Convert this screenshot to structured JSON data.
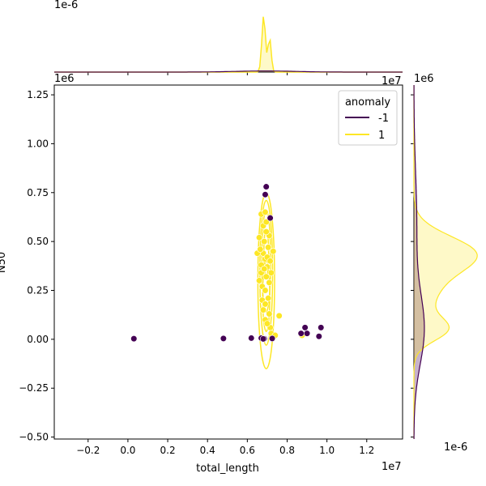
{
  "chart_data": {
    "type": "scatter",
    "kind": "jointplot (scatter + kde contours with marginal kde)",
    "xlabel": "total_length",
    "ylabel": "N50",
    "x_multiplier_label": "1e7",
    "y_multiplier_label": "1e6",
    "top_marginal_multiplier_label": "1e-6",
    "right_marginal_top_label": "1e6",
    "right_marginal_multiplier_label": "1e-6",
    "x_top_marginal_label": "1e7",
    "xlim": [
      -3700000.0,
      13800000.0
    ],
    "ylim": [
      -510000.0,
      1300000.0
    ],
    "x_ticks": [
      -2000000.0,
      0,
      2000000.0,
      4000000.0,
      6000000.0,
      8000000.0,
      10000000.0,
      12000000.0
    ],
    "x_tick_labels": [
      "−0.2",
      "0.0",
      "0.2",
      "0.4",
      "0.6",
      "0.8",
      "1.0",
      "1.2"
    ],
    "y_ticks": [
      -500000.0,
      -250000.0,
      0,
      250000.0,
      500000.0,
      750000.0,
      1000000.0,
      1250000.0
    ],
    "y_tick_labels": [
      "−0.50",
      "−0.25",
      "0.00",
      "0.25",
      "0.50",
      "0.75",
      "1.00",
      "1.25"
    ],
    "grid": false,
    "legend": {
      "title": "anomaly",
      "placement": "top-right",
      "entries": [
        {
          "label": "-1",
          "color": "#440154"
        },
        {
          "label": "1",
          "color": "#fde725"
        }
      ]
    },
    "series": [
      {
        "name": "1",
        "color": "#fde725",
        "points": [
          [
            6600000.0,
            300000.0
          ],
          [
            6700000.0,
            340000.0
          ],
          [
            6800000.0,
            440000.0
          ],
          [
            6900000.0,
            410000.0
          ],
          [
            7000000.0,
            370000.0
          ],
          [
            6800000.0,
            580000.0
          ],
          [
            6950000.0,
            600000.0
          ],
          [
            6700000.0,
            640000.0
          ],
          [
            6900000.0,
            650000.0
          ],
          [
            7100000.0,
            530000.0
          ],
          [
            6500000.0,
            440000.0
          ],
          [
            6850000.0,
            500000.0
          ],
          [
            7050000.0,
            470000.0
          ],
          [
            7300000.0,
            450000.0
          ],
          [
            6750000.0,
            270000.0
          ],
          [
            6900000.0,
            250000.0
          ],
          [
            7050000.0,
            210000.0
          ],
          [
            6800000.0,
            150000.0
          ],
          [
            6900000.0,
            100000.0
          ],
          [
            7150000.0,
            60000.0
          ],
          [
            7200000.0,
            30000.0
          ],
          [
            7400000.0,
            20000.0
          ],
          [
            7600000.0,
            120000.0
          ],
          [
            6950000.0,
            320000.0
          ],
          [
            7100000.0,
            290000.0
          ],
          [
            6700000.0,
            380000.0
          ],
          [
            6850000.0,
            360000.0
          ],
          [
            7000000.0,
            420000.0
          ],
          [
            6600000.0,
            520000.0
          ],
          [
            6950000.0,
            550000.0
          ],
          [
            7150000.0,
            400000.0
          ],
          [
            6750000.0,
            200000.0
          ],
          [
            6900000.0,
            180000.0
          ],
          [
            7100000.0,
            130000.0
          ],
          [
            7000000.0,
            80000.0
          ],
          [
            8750000.0,
            20000.0
          ],
          [
            6650000.0,
            460000.0
          ],
          [
            7200000.0,
            340000.0
          ]
        ]
      },
      {
        "name": "-1",
        "color": "#440154",
        "points": [
          [
            300000.0,
            3000.0
          ],
          [
            4800000.0,
            4000.0
          ],
          [
            6200000.0,
            6000.0
          ],
          [
            6700000.0,
            6000.0
          ],
          [
            6850000.0,
            3000.0
          ],
          [
            6900000.0,
            740000.0
          ],
          [
            6950000.0,
            780000.0
          ],
          [
            7150000.0,
            620000.0
          ],
          [
            7250000.0,
            4000.0
          ],
          [
            8700000.0,
            30000.0
          ],
          [
            8900000.0,
            60000.0
          ],
          [
            9000000.0,
            30000.0
          ],
          [
            9600000.0,
            15000.0
          ],
          [
            9700000.0,
            60000.0
          ],
          [
            6800000.0,
            2000.0
          ]
        ]
      }
    ],
    "kde_contours": [
      {
        "level": 1,
        "cx": 6950000.0,
        "cy": 300000.0,
        "rx": 420000.0,
        "ry": 450000.0
      },
      {
        "level": 2,
        "cx": 6950000.0,
        "cy": 340000.0,
        "rx": 320000.0,
        "ry": 370000.0
      },
      {
        "level": 3,
        "cx": 6950000.0,
        "cy": 400000.0,
        "rx": 220000.0,
        "ry": 260000.0
      },
      {
        "level": 4,
        "cx": 6950000.0,
        "cy": 220000.0,
        "rx": 180000.0,
        "ry": 180000.0
      },
      {
        "level": 5,
        "cx": 6950000.0,
        "cy": 440000.0,
        "rx": 120000.0,
        "ry": 120000.0
      }
    ]
  }
}
